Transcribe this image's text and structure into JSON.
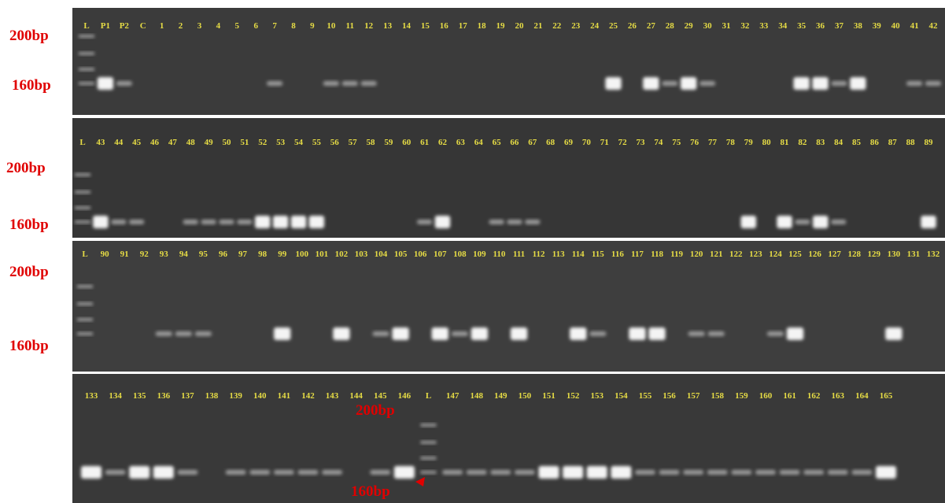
{
  "rows": [
    {
      "lanes": [
        "L",
        "P1",
        "P2",
        "C",
        "1",
        "2",
        "3",
        "4",
        "5",
        "6",
        "7",
        "8",
        "9",
        "10",
        "11",
        "12",
        "13",
        "14",
        "15",
        "16",
        "17",
        "18",
        "19",
        "20",
        "21",
        "22",
        "23",
        "24",
        "25",
        "26",
        "27",
        "28",
        "29",
        "30",
        "31",
        "32",
        "33",
        "34",
        "35",
        "36",
        "37",
        "38",
        "39",
        "40",
        "41",
        "42"
      ],
      "markers": [
        "200bp",
        "160bp"
      ]
    },
    {
      "lanes": [
        "L",
        "43",
        "44",
        "45",
        "46",
        "47",
        "48",
        "49",
        "50",
        "51",
        "52",
        "53",
        "54",
        "55",
        "56",
        "57",
        "58",
        "59",
        "60",
        "61",
        "62",
        "63",
        "64",
        "65",
        "66",
        "67",
        "68",
        "69",
        "70",
        "71",
        "72",
        "73",
        "74",
        "75",
        "76",
        "77",
        "78",
        "79",
        "80",
        "81",
        "82",
        "83",
        "84",
        "85",
        "86",
        "87",
        "88",
        "89"
      ],
      "markers": [
        "200bp",
        "160bp"
      ]
    },
    {
      "lanes": [
        "L",
        "90",
        "91",
        "92",
        "93",
        "94",
        "95",
        "96",
        "97",
        "98",
        "99",
        "100",
        "101",
        "102",
        "103",
        "104",
        "105",
        "106",
        "107",
        "108",
        "109",
        "110",
        "111",
        "112",
        "113",
        "114",
        "115",
        "116",
        "117",
        "118",
        "119",
        "120",
        "121",
        "122",
        "123",
        "124",
        "125",
        "126",
        "127",
        "128",
        "129",
        "130",
        "131",
        "132"
      ],
      "markers": [
        "200bp",
        "160bp"
      ]
    },
    {
      "lanes": [
        "133",
        "134",
        "135",
        "136",
        "137",
        "138",
        "139",
        "140",
        "141",
        "142",
        "143",
        "144",
        "145",
        "146",
        "L",
        "147",
        "148",
        "149",
        "150",
        "151",
        "152",
        "153",
        "154",
        "155",
        "156",
        "157",
        "158",
        "159",
        "160",
        "161",
        "162",
        "163",
        "164",
        "165"
      ],
      "markers": [
        "200bp",
        "160bp"
      ]
    }
  ]
}
